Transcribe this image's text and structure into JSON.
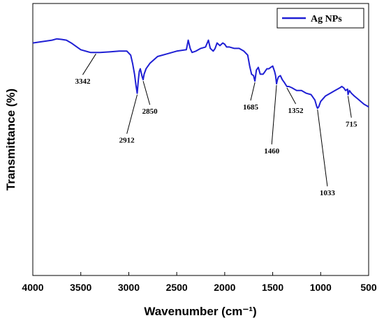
{
  "chart_data": {
    "type": "line",
    "title": "",
    "xlabel": "Wavenumber (cm⁻¹)",
    "ylabel": "Transmittance (%)",
    "xlim": [
      4000,
      500
    ],
    "x_reversed": true,
    "ylim": [
      0,
      100
    ],
    "y_ticks_shown": false,
    "x_ticks": [
      4000,
      3500,
      3000,
      2500,
      2000,
      1500,
      1000,
      500
    ],
    "grid": false,
    "legend": {
      "position": "top-right",
      "entries": [
        "Ag NPs"
      ]
    },
    "series": [
      {
        "name": "Ag NPs",
        "color": "#1f1fd4",
        "x": [
          4000,
          3900,
          3800,
          3750,
          3700,
          3650,
          3600,
          3500,
          3400,
          3342,
          3300,
          3200,
          3100,
          3020,
          2980,
          2960,
          2940,
          2925,
          2912,
          2900,
          2890,
          2880,
          2870,
          2860,
          2850,
          2840,
          2820,
          2780,
          2700,
          2600,
          2500,
          2400,
          2380,
          2360,
          2340,
          2300,
          2250,
          2200,
          2170,
          2150,
          2120,
          2100,
          2080,
          2050,
          2020,
          2000,
          1980,
          1950,
          1900,
          1850,
          1800,
          1760,
          1740,
          1720,
          1700,
          1685,
          1670,
          1650,
          1630,
          1600,
          1580,
          1560,
          1540,
          1520,
          1500,
          1480,
          1470,
          1460,
          1450,
          1440,
          1420,
          1400,
          1380,
          1352,
          1330,
          1300,
          1250,
          1200,
          1150,
          1100,
          1060,
          1040,
          1033,
          1020,
          1000,
          950,
          900,
          850,
          800,
          780,
          760,
          740,
          720,
          715,
          700,
          680,
          650,
          600,
          550,
          500
        ],
        "y": [
          85.5,
          86,
          86.5,
          87,
          86.8,
          86.5,
          85.5,
          83,
          82,
          82,
          82,
          82.2,
          82.5,
          82.5,
          81,
          78,
          74,
          70,
          67,
          72,
          75,
          76,
          74.5,
          73,
          72,
          74,
          76,
          78,
          80.5,
          81.5,
          82.5,
          83,
          86.5,
          83.5,
          82,
          82.5,
          83.5,
          84,
          86.5,
          83.5,
          82.5,
          83.5,
          85.5,
          84.5,
          85.5,
          85,
          84,
          84,
          83.5,
          83.5,
          82.5,
          81,
          77,
          74,
          73.5,
          71.5,
          75.5,
          76.5,
          74,
          74,
          75,
          76,
          76,
          76.5,
          77,
          75,
          73.5,
          70.5,
          72,
          73,
          73.5,
          72,
          71,
          69.5,
          69.5,
          69,
          68,
          68,
          67,
          66.5,
          64.5,
          62,
          61.5,
          62,
          64,
          66,
          67,
          68,
          69,
          69.5,
          69,
          68,
          68.5,
          66.5,
          68,
          67,
          66,
          64.5,
          63,
          62
        ]
      }
    ],
    "annotations": [
      {
        "label": "3342",
        "x": 3342
      },
      {
        "label": "2912",
        "x": 2912
      },
      {
        "label": "2850",
        "x": 2850
      },
      {
        "label": "1685",
        "x": 1685
      },
      {
        "label": "1460",
        "x": 1460
      },
      {
        "label": "1352",
        "x": 1352
      },
      {
        "label": "1033",
        "x": 1033
      },
      {
        "label": "715",
        "x": 715
      }
    ]
  }
}
